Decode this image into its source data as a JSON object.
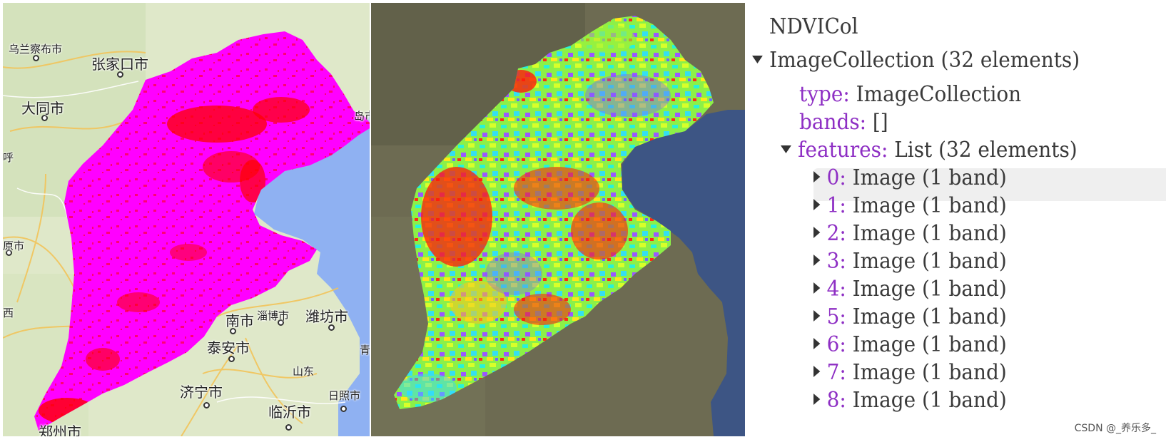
{
  "left_map": {
    "cities": [
      {
        "name": "乌兰察布市",
        "size": "small"
      },
      {
        "name": "张家口市",
        "size": "big"
      },
      {
        "name": "大同市",
        "size": "big"
      },
      {
        "name": "呼",
        "size": "small"
      },
      {
        "name": "原市",
        "size": "small"
      },
      {
        "name": "西",
        "size": "small"
      },
      {
        "name": "淄博市",
        "size": "small"
      },
      {
        "name": "潍坊市",
        "size": "big"
      },
      {
        "name": "南市",
        "size": "big"
      },
      {
        "name": "泰安市",
        "size": "big"
      },
      {
        "name": "山东",
        "size": "small"
      },
      {
        "name": "济宁市",
        "size": "big"
      },
      {
        "name": "日照市",
        "size": "small"
      },
      {
        "name": "临沂市",
        "size": "big"
      },
      {
        "name": "郑州市",
        "size": "big"
      },
      {
        "name": "岛市",
        "size": "small"
      },
      {
        "name": "青",
        "size": "small"
      }
    ],
    "colors": {
      "region": "#ff00ff",
      "hotspot": "#ff0000",
      "sea": "#8fb1f2",
      "land": "#dfe8c9"
    }
  },
  "right_map": {
    "colors": {
      "sea": "#3d5584",
      "land": "#6d6b52"
    }
  },
  "console": {
    "variable": "NDVICol",
    "root_label": "ImageCollection (32 elements)",
    "type_key": "type:",
    "type_value": "ImageCollection",
    "bands_key": "bands:",
    "bands_value": "[]",
    "features_key": "features:",
    "features_value": "List (32 elements)",
    "items": [
      {
        "index": "0:",
        "label": "Image (1 band)"
      },
      {
        "index": "1:",
        "label": "Image (1 band)"
      },
      {
        "index": "2:",
        "label": "Image (1 band)"
      },
      {
        "index": "3:",
        "label": "Image (1 band)"
      },
      {
        "index": "4:",
        "label": "Image (1 band)"
      },
      {
        "index": "5:",
        "label": "Image (1 band)"
      },
      {
        "index": "6:",
        "label": "Image (1 band)"
      },
      {
        "index": "7:",
        "label": "Image (1 band)"
      },
      {
        "index": "8:",
        "label": "Image (1 band)"
      }
    ]
  },
  "watermark": "CSDN @_养乐多_"
}
